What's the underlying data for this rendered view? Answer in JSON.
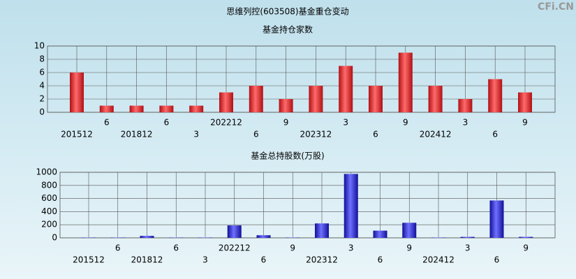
{
  "title": "思维列控(603508)基金重仓变动",
  "watermark": "CFi.CN",
  "chart_data": [
    {
      "type": "bar",
      "title": "基金持仓家数",
      "color": "#e0262a",
      "categories": [
        "201512",
        "6",
        "201812",
        "6",
        "3",
        "202212",
        "6",
        "9",
        "202312",
        "3",
        "6",
        "9",
        "202412",
        "3",
        "6",
        "9"
      ],
      "values": [
        6,
        1,
        1,
        1,
        1,
        3,
        4,
        2,
        4,
        7,
        4,
        9,
        4,
        2,
        5,
        3
      ],
      "ylim": [
        0,
        10
      ],
      "yticks": [
        0,
        2,
        4,
        6,
        8,
        10
      ],
      "grid": true
    },
    {
      "type": "bar",
      "title": "基金总持股数(万股)",
      "color": "#2a2ad8",
      "categories": [
        "201512",
        "6",
        "201812",
        "6",
        "3",
        "202212",
        "6",
        "9",
        "202312",
        "3",
        "6",
        "9",
        "202412",
        "3",
        "6",
        "9"
      ],
      "values": [
        5,
        5,
        30,
        5,
        5,
        190,
        40,
        5,
        220,
        975,
        110,
        230,
        5,
        15,
        570,
        15
      ],
      "ylim": [
        0,
        1000
      ],
      "yticks": [
        0,
        200,
        400,
        600,
        800,
        1000
      ],
      "grid": true
    }
  ]
}
